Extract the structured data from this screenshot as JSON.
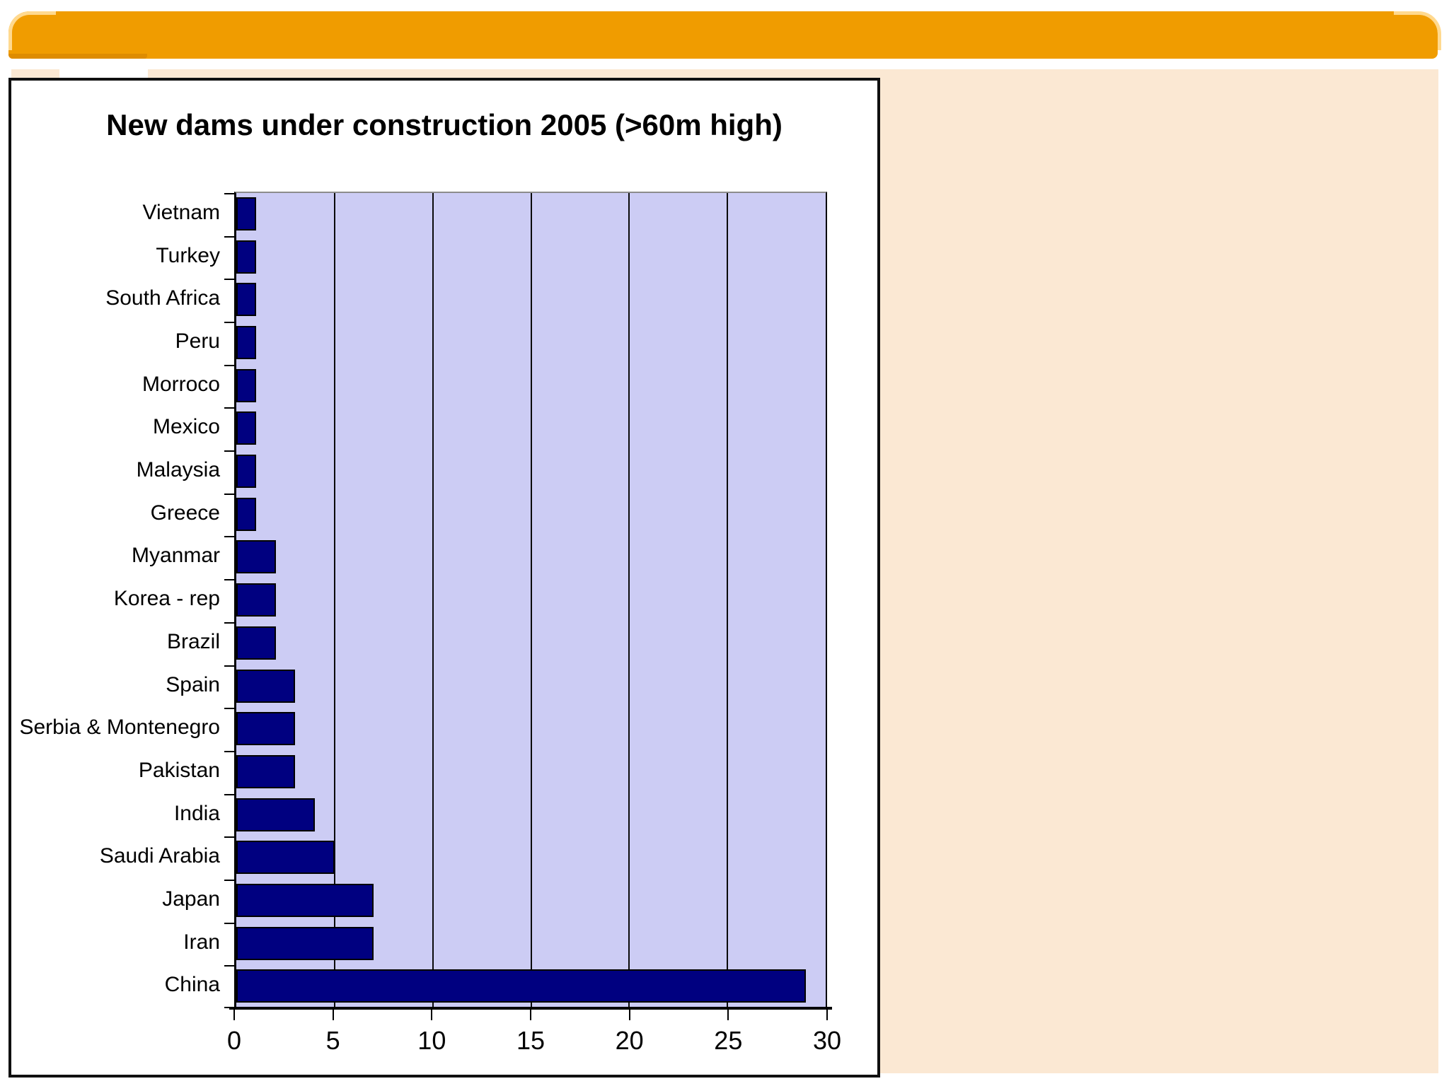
{
  "page": {
    "background": "#FFFFFF"
  },
  "banner": {
    "color": "#F09C00",
    "highlight_color": "#FFD98F",
    "shadow_color": "#DE8C00"
  },
  "slide": {
    "background": "#FBE8D3"
  },
  "chart_frame": {
    "background": "#FFFFFF",
    "border_color": "#101010"
  },
  "chart_data": {
    "type": "bar",
    "orientation": "horizontal",
    "title": "New dams under construction 2005 (>60m high)",
    "categories": [
      "Vietnam",
      "Turkey",
      "South Africa",
      "Peru",
      "Morroco",
      "Mexico",
      "Malaysia",
      "Greece",
      "Myanmar",
      "Korea - rep",
      "Brazil",
      "Spain",
      "Serbia & Montenegro",
      "Pakistan",
      "India",
      "Saudi Arabia",
      "Japan",
      "Iran",
      "China"
    ],
    "values": [
      1,
      1,
      1,
      1,
      1,
      1,
      1,
      1,
      2,
      2,
      2,
      3,
      3,
      3,
      4,
      5,
      7,
      7,
      29
    ],
    "xlabel": "",
    "ylabel": "",
    "xlim": [
      0,
      30
    ],
    "xticks": [
      0,
      5,
      10,
      15,
      20,
      25,
      30
    ],
    "grid": true,
    "legend": false,
    "plot_bg": "#CCCCF4",
    "bar_color": "#000080",
    "bar_border": "#000000",
    "gridline_color": "#0a0a0a"
  }
}
